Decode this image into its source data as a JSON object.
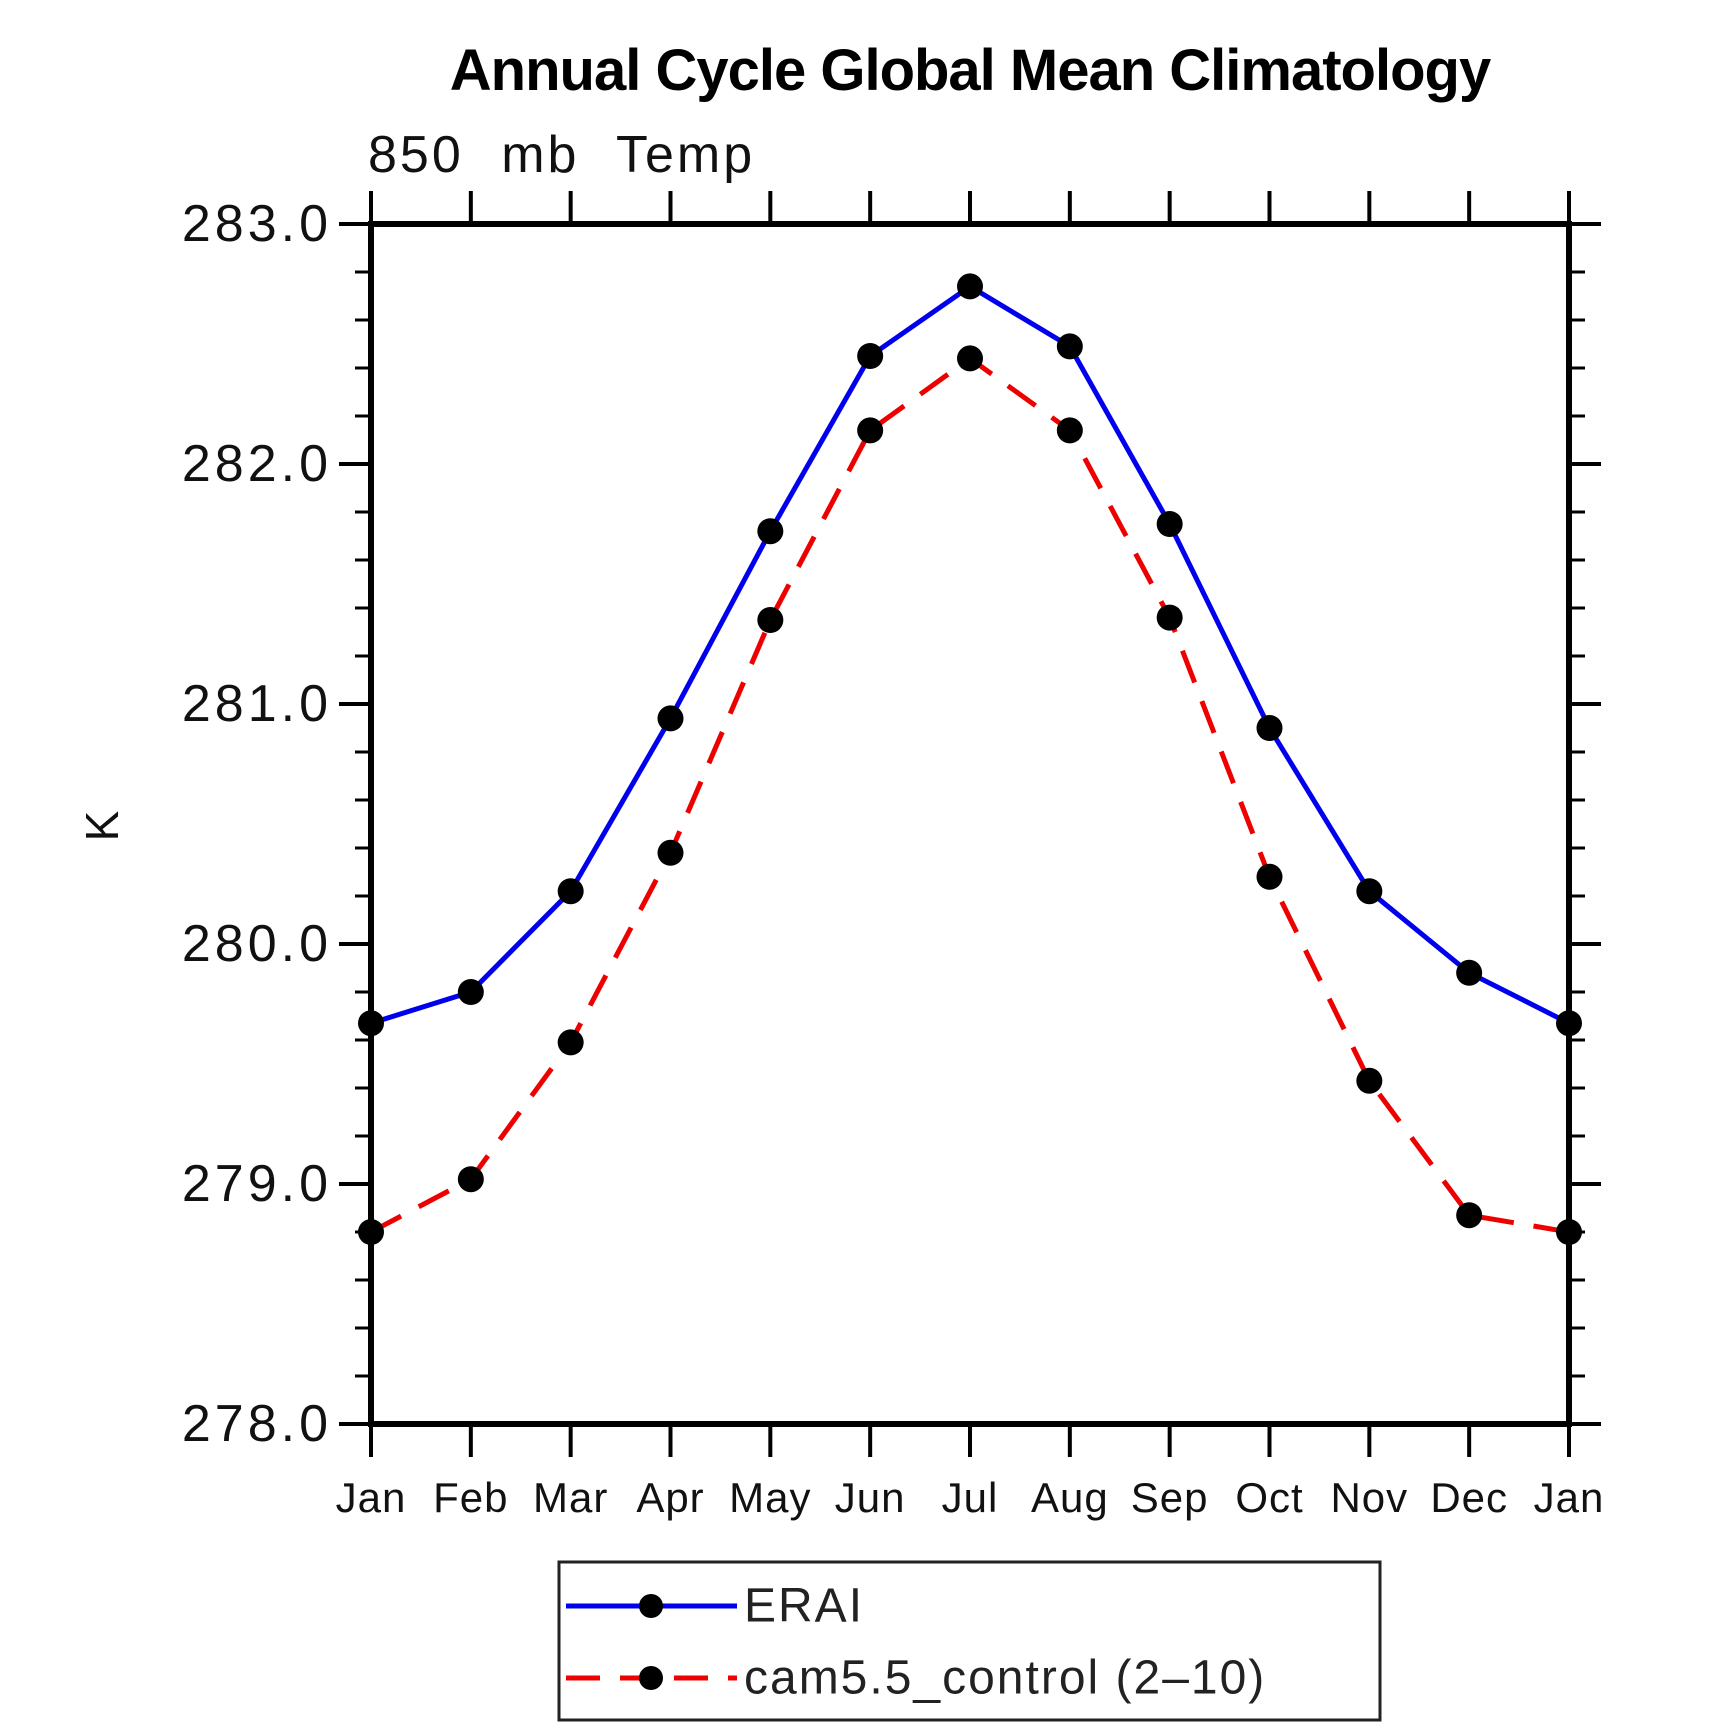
{
  "title": "Annual Cycle Global Mean Climatology",
  "subtitle": "850 mb Temp",
  "y_axis_label": "K",
  "chart_data": {
    "type": "line",
    "categories": [
      "Jan",
      "Feb",
      "Mar",
      "Apr",
      "May",
      "Jun",
      "Jul",
      "Aug",
      "Sep",
      "Oct",
      "Nov",
      "Dec",
      "Jan"
    ],
    "series": [
      {
        "name": "ERAI",
        "color": "#0000ee",
        "line_style": "solid",
        "marker": "filled-circle",
        "marker_color": "#000000",
        "values": [
          279.67,
          279.8,
          280.22,
          280.94,
          281.72,
          282.45,
          282.74,
          282.49,
          281.75,
          280.9,
          280.22,
          279.88,
          279.67
        ]
      },
      {
        "name": "cam5.5_control (2–10)",
        "color": "#ee0000",
        "line_style": "dashed",
        "marker": "filled-circle",
        "marker_color": "#000000",
        "values": [
          278.8,
          279.02,
          279.59,
          280.38,
          281.35,
          282.14,
          282.44,
          282.14,
          281.36,
          280.28,
          279.43,
          278.87,
          278.8
        ]
      }
    ],
    "ylim": [
      278.0,
      283.0
    ],
    "yticks": [
      "283.0",
      "282.0",
      "281.0",
      "280.0",
      "279.0",
      "278.0"
    ],
    "ytick_values": [
      283,
      282,
      281,
      280,
      279,
      278
    ],
    "minor_tick_interval": 0.2,
    "grid": "off",
    "legend_position": "bottom-center",
    "axis_color": "#000000"
  }
}
